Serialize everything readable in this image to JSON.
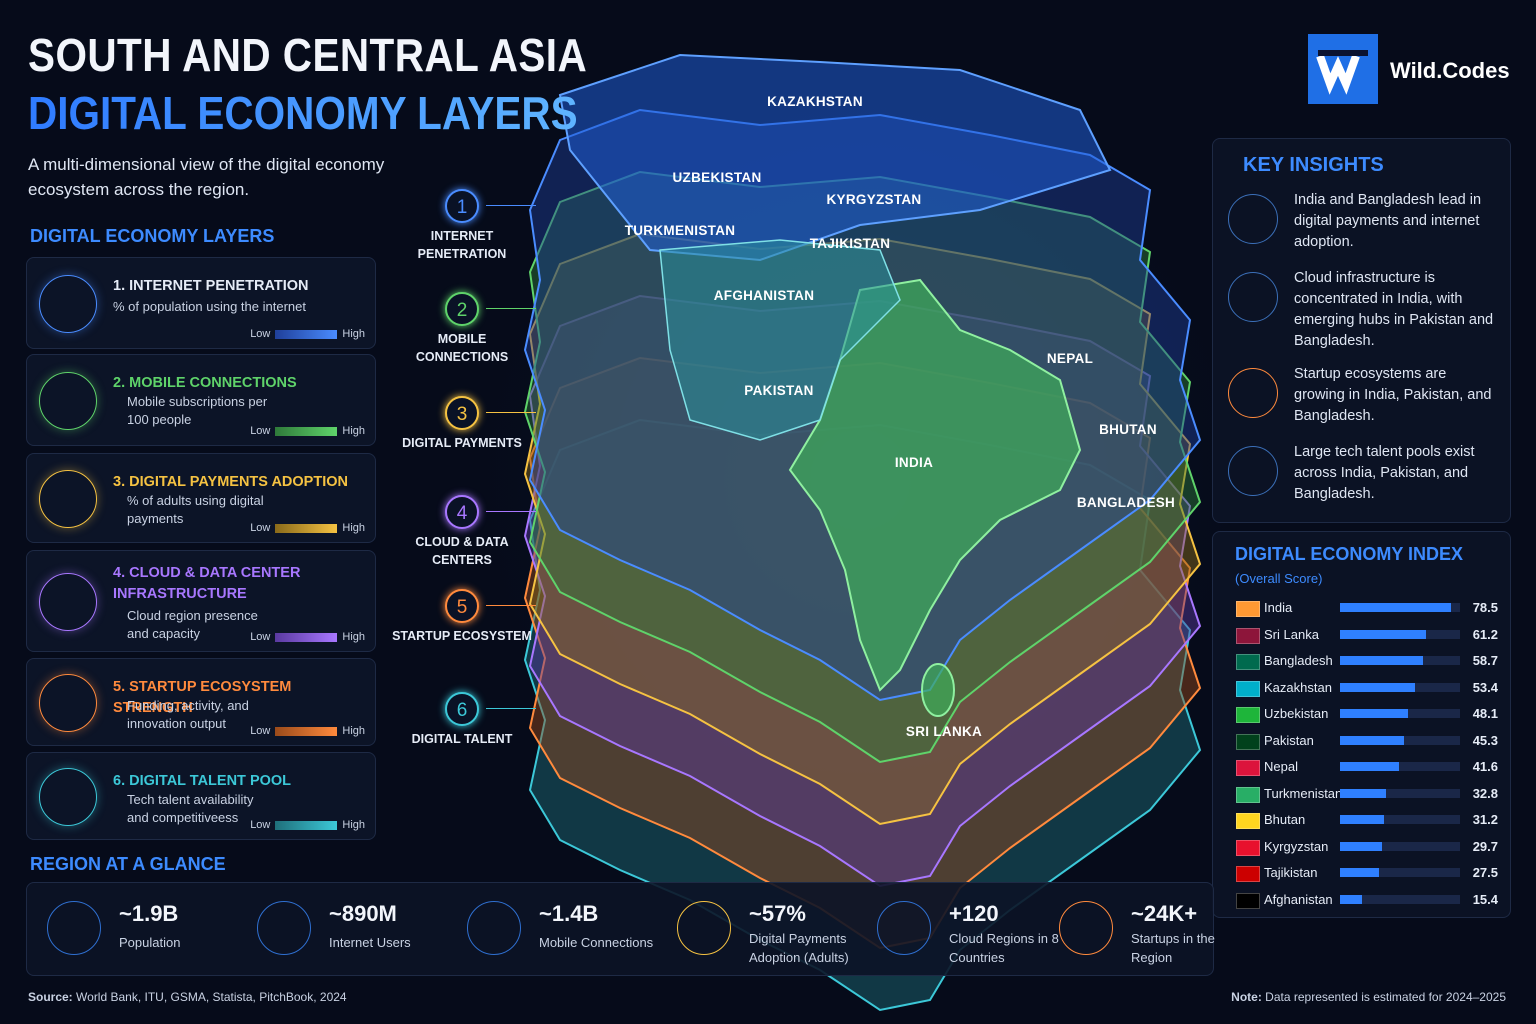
{
  "header": {
    "title_line1": "SOUTH AND CENTRAL ASIA",
    "title_line2": "DIGITAL ECONOMY LAYERS",
    "subtitle": "A multi-dimensional view of the digital economy ecosystem across the region."
  },
  "brand": "Wild.Codes",
  "layers_panel": {
    "heading": "DIGITAL ECONOMY LAYERS",
    "legend_low": "Low",
    "legend_high": "High",
    "items": [
      {
        "title": "1. INTERNET PENETRATION",
        "description": "% of population using the internet"
      },
      {
        "title": "2. MOBILE CONNECTIONS",
        "description": "Mobile subscriptions per 100 people"
      },
      {
        "title": "3. DIGITAL PAYMENTS ADOPTION",
        "description": "% of adults using digital payments"
      },
      {
        "title": "4. CLOUD & DATA CENTER INFRASTRUCTURE",
        "description": "Cloud region presence and capacity"
      },
      {
        "title": "5. STARTUP ECOSYSTEM STRENGTH",
        "description": "Funding, activity, and innovation output"
      },
      {
        "title": "6. DIGITAL TALENT POOL",
        "description": "Tech talent availability and competitiveess"
      }
    ]
  },
  "map": {
    "layer_markers": [
      {
        "number": "1",
        "label": "INTERNET PENETRATION"
      },
      {
        "number": "2",
        "label": "MOBILE CONNECTIONS"
      },
      {
        "number": "3",
        "label": "DIGITAL PAYMENTS"
      },
      {
        "number": "4",
        "label": "CLOUD & DATA CENTERS"
      },
      {
        "number": "5",
        "label": "STARTUP ECOSYSTEM"
      },
      {
        "number": "6",
        "label": "DIGITAL TALENT"
      }
    ],
    "countries": [
      "KAZAKHSTAN",
      "UZBEKISTAN",
      "KYRGYZSTAN",
      "TURKMENISTAN",
      "TAJIKISTAN",
      "AFGHANISTAN",
      "PAKISTAN",
      "NEPAL",
      "BHUTAN",
      "INDIA",
      "BANGLADESH",
      "SRI LANKA"
    ]
  },
  "key_insights": {
    "heading": "KEY INSIGHTS",
    "items": [
      "India and Bangladesh lead in digital payments and internet adoption.",
      "Cloud infrastructure is concentrated in India, with emerging hubs in Pakistan and Bangladesh.",
      "Startup ecosystems are growing in India, Pakistan, and Bangladesh.",
      "Large tech talent pools exist across India, Pakistan, and Bangladesh."
    ]
  },
  "index": {
    "title": "DIGITAL ECONOMY INDEX",
    "subtitle": "(Overall Score)",
    "xlim": [
      0,
      85
    ],
    "rows": [
      {
        "country": "India",
        "score": 78.5
      },
      {
        "country": "Sri Lanka",
        "score": 61.2
      },
      {
        "country": "Bangladesh",
        "score": 58.7
      },
      {
        "country": "Kazakhstan",
        "score": 53.4
      },
      {
        "country": "Uzbekistan",
        "score": 48.1
      },
      {
        "country": "Pakistan",
        "score": 45.3
      },
      {
        "country": "Nepal",
        "score": 41.6
      },
      {
        "country": "Turkmenistan",
        "score": 32.8
      },
      {
        "country": "Bhutan",
        "score": 31.2
      },
      {
        "country": "Kyrgyzstan",
        "score": 29.7
      },
      {
        "country": "Tajikistan",
        "score": 27.5
      },
      {
        "country": "Afghanistan",
        "score": 15.4
      }
    ]
  },
  "glance": {
    "heading": "REGION AT A GLANCE",
    "items": [
      {
        "value": "~1.9B",
        "label": "Population"
      },
      {
        "value": "~890M",
        "label": "Internet Users"
      },
      {
        "value": "~1.4B",
        "label": "Mobile Connections"
      },
      {
        "value": "~57%",
        "label": "Digital Payments Adoption (Adults)"
      },
      {
        "value": "+120",
        "label": "Cloud Regions in 8 Countries"
      },
      {
        "value": "~24K+",
        "label": "Startups in the Region"
      }
    ]
  },
  "footer": {
    "source_label": "Source:",
    "source": "World Bank, ITU, GSMA, Statista, PitchBook, 2024",
    "note_label": "Note:",
    "note": "Data represented is estimated for 2024–2025"
  }
}
